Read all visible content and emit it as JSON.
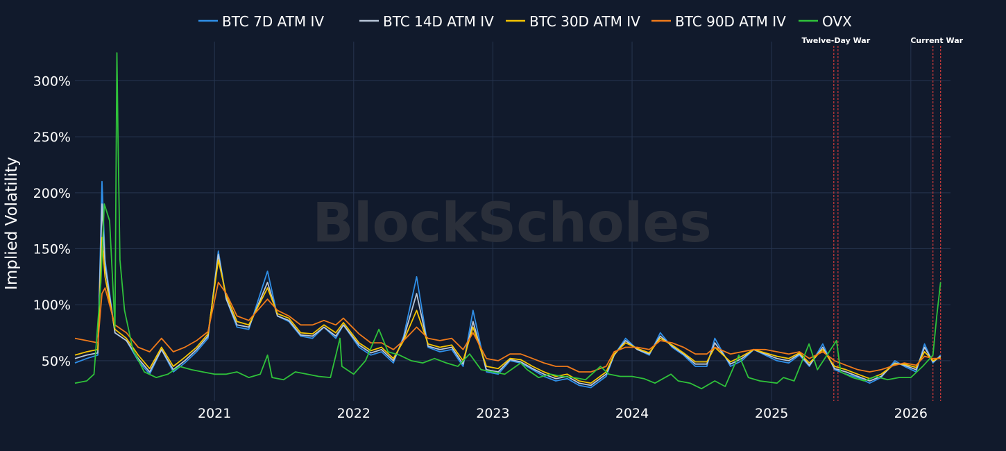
{
  "chart_data": {
    "type": "line",
    "title": "",
    "xlabel": "",
    "ylabel": "Implied Volatility",
    "watermark": "BlockScholes",
    "x_ticks": [
      "2021",
      "2022",
      "2023",
      "2024",
      "2025",
      "2026"
    ],
    "y_ticks": [
      "50%",
      "100%",
      "150%",
      "200%",
      "250%",
      "300%"
    ],
    "y_tick_values": [
      50,
      100,
      150,
      200,
      250,
      300
    ],
    "ylim": [
      14,
      335
    ],
    "xlim": [
      "2020-01-01",
      "2026-04-15"
    ],
    "grid": true,
    "legend_position": "top-center",
    "background_color": "#111a2c",
    "grid_color": "#26344f",
    "events": [
      {
        "label": "Twelve-Day War",
        "start": "2025-06-13",
        "end": "2025-06-24",
        "color": "#d13b3b"
      },
      {
        "label": "Current War",
        "start": "2026-02-28",
        "end": "2026-03-20",
        "color": "#d13b3b"
      }
    ],
    "series": [
      {
        "name": "BTC 7D ATM IV",
        "color": "#2f8fe8",
        "x": [
          "2020-01-01",
          "2020-02-01",
          "2020-03-01",
          "2020-03-12",
          "2020-03-20",
          "2020-04-15",
          "2020-05-15",
          "2020-06-15",
          "2020-07-15",
          "2020-08-15",
          "2020-09-15",
          "2020-10-15",
          "2020-11-15",
          "2020-12-15",
          "2021-01-11",
          "2021-02-01",
          "2021-03-01",
          "2021-04-01",
          "2021-05-20",
          "2021-06-15",
          "2021-07-15",
          "2021-08-15",
          "2021-09-15",
          "2021-10-15",
          "2021-11-15",
          "2021-12-05",
          "2022-01-15",
          "2022-02-15",
          "2022-03-15",
          "2022-04-15",
          "2022-05-12",
          "2022-06-15",
          "2022-07-15",
          "2022-08-15",
          "2022-09-15",
          "2022-10-15",
          "2022-11-10",
          "2022-12-15",
          "2023-01-15",
          "2023-02-15",
          "2023-03-15",
          "2023-04-15",
          "2023-05-15",
          "2023-06-15",
          "2023-07-15",
          "2023-08-15",
          "2023-09-15",
          "2023-10-25",
          "2023-11-15",
          "2023-12-15",
          "2024-01-15",
          "2024-02-15",
          "2024-03-15",
          "2024-04-15",
          "2024-05-15",
          "2024-06-15",
          "2024-07-15",
          "2024-08-05",
          "2024-09-15",
          "2024-10-15",
          "2024-11-15",
          "2024-12-15",
          "2025-01-15",
          "2025-02-15",
          "2025-03-15",
          "2025-04-10",
          "2025-05-15",
          "2025-06-15",
          "2025-07-15",
          "2025-08-15",
          "2025-09-15",
          "2025-10-15",
          "2025-11-20",
          "2025-12-15",
          "2026-01-15",
          "2026-02-06",
          "2026-02-28",
          "2026-03-20"
        ],
        "values": [
          48,
          52,
          55,
          210,
          140,
          75,
          68,
          50,
          38,
          60,
          40,
          48,
          58,
          70,
          148,
          105,
          80,
          78,
          130,
          90,
          85,
          72,
          70,
          80,
          70,
          82,
          62,
          55,
          58,
          48,
          72,
          125,
          62,
          58,
          60,
          45,
          95,
          40,
          38,
          50,
          48,
          42,
          36,
          32,
          34,
          28,
          26,
          36,
          55,
          70,
          60,
          55,
          75,
          62,
          55,
          45,
          45,
          70,
          45,
          50,
          60,
          55,
          50,
          48,
          55,
          45,
          65,
          42,
          38,
          35,
          30,
          35,
          50,
          45,
          40,
          65,
          48,
          55
        ]
      },
      {
        "name": "BTC 14D ATM IV",
        "color": "#b8c6d8",
        "x": [
          "2020-01-01",
          "2020-02-01",
          "2020-03-01",
          "2020-03-12",
          "2020-03-20",
          "2020-04-15",
          "2020-05-15",
          "2020-06-15",
          "2020-07-15",
          "2020-08-15",
          "2020-09-15",
          "2020-10-15",
          "2020-11-15",
          "2020-12-15",
          "2021-01-11",
          "2021-02-01",
          "2021-03-01",
          "2021-04-01",
          "2021-05-20",
          "2021-06-15",
          "2021-07-15",
          "2021-08-15",
          "2021-09-15",
          "2021-10-15",
          "2021-11-15",
          "2021-12-05",
          "2022-01-15",
          "2022-02-15",
          "2022-03-15",
          "2022-04-15",
          "2022-05-12",
          "2022-06-15",
          "2022-07-15",
          "2022-08-15",
          "2022-09-15",
          "2022-10-15",
          "2022-11-10",
          "2022-12-15",
          "2023-01-15",
          "2023-02-15",
          "2023-03-15",
          "2023-04-15",
          "2023-05-15",
          "2023-06-15",
          "2023-07-15",
          "2023-08-15",
          "2023-09-15",
          "2023-10-25",
          "2023-11-15",
          "2023-12-15",
          "2024-01-15",
          "2024-02-15",
          "2024-03-15",
          "2024-04-15",
          "2024-05-15",
          "2024-06-15",
          "2024-07-15",
          "2024-08-05",
          "2024-09-15",
          "2024-10-15",
          "2024-11-15",
          "2024-12-15",
          "2025-01-15",
          "2025-02-15",
          "2025-03-15",
          "2025-04-10",
          "2025-05-15",
          "2025-06-15",
          "2025-07-15",
          "2025-08-15",
          "2025-09-15",
          "2025-10-15",
          "2025-11-20",
          "2025-12-15",
          "2026-01-15",
          "2026-02-06",
          "2026-02-28",
          "2026-03-20"
        ],
        "values": [
          52,
          55,
          57,
          190,
          135,
          75,
          68,
          52,
          40,
          60,
          42,
          50,
          60,
          72,
          145,
          105,
          82,
          80,
          120,
          90,
          86,
          73,
          72,
          80,
          72,
          82,
          64,
          57,
          60,
          50,
          70,
          110,
          63,
          60,
          62,
          47,
          85,
          42,
          40,
          51,
          49,
          43,
          38,
          34,
          36,
          30,
          28,
          38,
          55,
          68,
          60,
          56,
          72,
          63,
          56,
          47,
          47,
          66,
          47,
          52,
          60,
          56,
          52,
          50,
          56,
          46,
          62,
          43,
          40,
          36,
          32,
          36,
          48,
          46,
          42,
          62,
          49,
          54
        ]
      },
      {
        "name": "BTC 30D ATM IV",
        "color": "#f5c400",
        "x": [
          "2020-01-01",
          "2020-02-01",
          "2020-03-01",
          "2020-03-12",
          "2020-03-20",
          "2020-04-15",
          "2020-05-15",
          "2020-06-15",
          "2020-07-15",
          "2020-08-15",
          "2020-09-15",
          "2020-10-15",
          "2020-11-15",
          "2020-12-15",
          "2021-01-11",
          "2021-02-01",
          "2021-03-01",
          "2021-04-01",
          "2021-05-20",
          "2021-06-15",
          "2021-07-15",
          "2021-08-15",
          "2021-09-15",
          "2021-10-15",
          "2021-11-15",
          "2021-12-05",
          "2022-01-15",
          "2022-02-15",
          "2022-03-15",
          "2022-04-15",
          "2022-05-12",
          "2022-06-15",
          "2022-07-15",
          "2022-08-15",
          "2022-09-15",
          "2022-10-15",
          "2022-11-10",
          "2022-12-15",
          "2023-01-15",
          "2023-02-15",
          "2023-03-15",
          "2023-04-15",
          "2023-05-15",
          "2023-06-15",
          "2023-07-15",
          "2023-08-15",
          "2023-09-15",
          "2023-10-25",
          "2023-11-15",
          "2023-12-15",
          "2024-01-15",
          "2024-02-15",
          "2024-03-15",
          "2024-04-15",
          "2024-05-15",
          "2024-06-15",
          "2024-07-15",
          "2024-08-05",
          "2024-09-15",
          "2024-10-15",
          "2024-11-15",
          "2024-12-15",
          "2025-01-15",
          "2025-02-15",
          "2025-03-15",
          "2025-04-10",
          "2025-05-15",
          "2025-06-15",
          "2025-07-15",
          "2025-08-15",
          "2025-09-15",
          "2025-10-15",
          "2025-11-20",
          "2025-12-15",
          "2026-01-15",
          "2026-02-06",
          "2026-02-28",
          "2026-03-20"
        ],
        "values": [
          55,
          58,
          60,
          160,
          125,
          78,
          70,
          55,
          43,
          62,
          45,
          53,
          62,
          74,
          140,
          108,
          85,
          82,
          115,
          92,
          88,
          75,
          74,
          82,
          75,
          84,
          66,
          59,
          62,
          52,
          68,
          95,
          65,
          62,
          64,
          50,
          80,
          45,
          43,
          52,
          51,
          45,
          40,
          36,
          38,
          32,
          30,
          40,
          56,
          66,
          61,
          57,
          70,
          64,
          57,
          49,
          49,
          62,
          49,
          54,
          60,
          57,
          54,
          52,
          57,
          48,
          60,
          45,
          42,
          38,
          34,
          38,
          47,
          47,
          44,
          58,
          50,
          53
        ]
      },
      {
        "name": "BTC 90D ATM IV",
        "color": "#f07a1a",
        "x": [
          "2020-01-01",
          "2020-02-01",
          "2020-03-01",
          "2020-03-12",
          "2020-03-20",
          "2020-04-15",
          "2020-05-15",
          "2020-06-15",
          "2020-07-15",
          "2020-08-15",
          "2020-09-15",
          "2020-10-15",
          "2020-11-15",
          "2020-12-15",
          "2021-01-11",
          "2021-02-01",
          "2021-03-01",
          "2021-04-01",
          "2021-05-20",
          "2021-06-15",
          "2021-07-15",
          "2021-08-15",
          "2021-09-15",
          "2021-10-15",
          "2021-11-15",
          "2021-12-05",
          "2022-01-15",
          "2022-02-15",
          "2022-03-15",
          "2022-04-15",
          "2022-05-12",
          "2022-06-15",
          "2022-07-15",
          "2022-08-15",
          "2022-09-15",
          "2022-10-15",
          "2022-11-10",
          "2022-12-15",
          "2023-01-15",
          "2023-02-15",
          "2023-03-15",
          "2023-04-15",
          "2023-05-15",
          "2023-06-15",
          "2023-07-15",
          "2023-08-15",
          "2023-09-15",
          "2023-10-25",
          "2023-11-15",
          "2023-12-15",
          "2024-01-15",
          "2024-02-15",
          "2024-03-15",
          "2024-04-15",
          "2024-05-15",
          "2024-06-15",
          "2024-07-15",
          "2024-08-05",
          "2024-09-15",
          "2024-10-15",
          "2024-11-15",
          "2024-12-15",
          "2025-01-15",
          "2025-02-15",
          "2025-03-15",
          "2025-04-10",
          "2025-05-15",
          "2025-06-15",
          "2025-07-15",
          "2025-08-15",
          "2025-09-15",
          "2025-10-15",
          "2025-11-20",
          "2025-12-15",
          "2026-01-15",
          "2026-02-06",
          "2026-02-28",
          "2026-03-20"
        ],
        "values": [
          70,
          68,
          66,
          110,
          115,
          82,
          75,
          62,
          58,
          70,
          58,
          62,
          68,
          76,
          120,
          110,
          90,
          86,
          105,
          95,
          90,
          82,
          82,
          86,
          82,
          88,
          74,
          66,
          66,
          60,
          68,
          80,
          70,
          68,
          70,
          60,
          75,
          52,
          50,
          56,
          56,
          52,
          48,
          45,
          45,
          40,
          40,
          45,
          58,
          62,
          62,
          60,
          68,
          66,
          62,
          56,
          56,
          62,
          56,
          58,
          60,
          60,
          58,
          56,
          58,
          52,
          58,
          50,
          46,
          42,
          40,
          42,
          46,
          48,
          46,
          54,
          52,
          52
        ]
      },
      {
        "name": "OVX",
        "color": "#2fc23a",
        "x": [
          "2020-01-01",
          "2020-02-01",
          "2020-02-20",
          "2020-03-09",
          "2020-03-18",
          "2020-04-01",
          "2020-04-15",
          "2020-04-20",
          "2020-04-23",
          "2020-04-28",
          "2020-05-10",
          "2020-06-01",
          "2020-07-01",
          "2020-08-01",
          "2020-09-01",
          "2020-10-01",
          "2020-11-01",
          "2020-12-01",
          "2021-01-01",
          "2021-02-01",
          "2021-03-01",
          "2021-04-01",
          "2021-05-01",
          "2021-05-20",
          "2021-06-01",
          "2021-07-01",
          "2021-08-01",
          "2021-09-01",
          "2021-10-01",
          "2021-11-01",
          "2021-11-26",
          "2021-12-01",
          "2022-01-01",
          "2022-02-01",
          "2022-03-08",
          "2022-04-01",
          "2022-05-01",
          "2022-06-01",
          "2022-07-01",
          "2022-08-01",
          "2022-09-01",
          "2022-10-01",
          "2022-11-01",
          "2022-12-01",
          "2023-01-01",
          "2023-02-01",
          "2023-03-15",
          "2023-04-01",
          "2023-05-01",
          "2023-06-01",
          "2023-07-01",
          "2023-08-01",
          "2023-09-01",
          "2023-10-10",
          "2023-11-01",
          "2023-12-01",
          "2024-01-01",
          "2024-02-01",
          "2024-03-01",
          "2024-04-12",
          "2024-05-01",
          "2024-06-01",
          "2024-07-01",
          "2024-08-05",
          "2024-09-01",
          "2024-10-07",
          "2024-11-01",
          "2024-12-01",
          "2025-01-15",
          "2025-02-01",
          "2025-03-01",
          "2025-04-09",
          "2025-05-01",
          "2025-06-20",
          "2025-07-01",
          "2025-08-01",
          "2025-09-01",
          "2025-10-01",
          "2025-11-01",
          "2025-12-01",
          "2026-01-01",
          "2026-02-01",
          "2026-02-28",
          "2026-03-10",
          "2026-03-20"
        ],
        "values": [
          30,
          32,
          38,
          120,
          190,
          175,
          80,
          325,
          250,
          140,
          95,
          60,
          40,
          35,
          38,
          45,
          42,
          40,
          38,
          38,
          40,
          35,
          38,
          55,
          35,
          33,
          40,
          38,
          36,
          35,
          70,
          45,
          38,
          50,
          78,
          58,
          55,
          50,
          48,
          52,
          48,
          45,
          56,
          42,
          40,
          38,
          48,
          42,
          35,
          38,
          36,
          35,
          33,
          45,
          38,
          36,
          36,
          34,
          30,
          38,
          32,
          30,
          25,
          32,
          27,
          55,
          35,
          32,
          30,
          35,
          32,
          65,
          42,
          68,
          40,
          35,
          32,
          36,
          33,
          35,
          35,
          45,
          55,
          90,
          120
        ]
      }
    ]
  }
}
